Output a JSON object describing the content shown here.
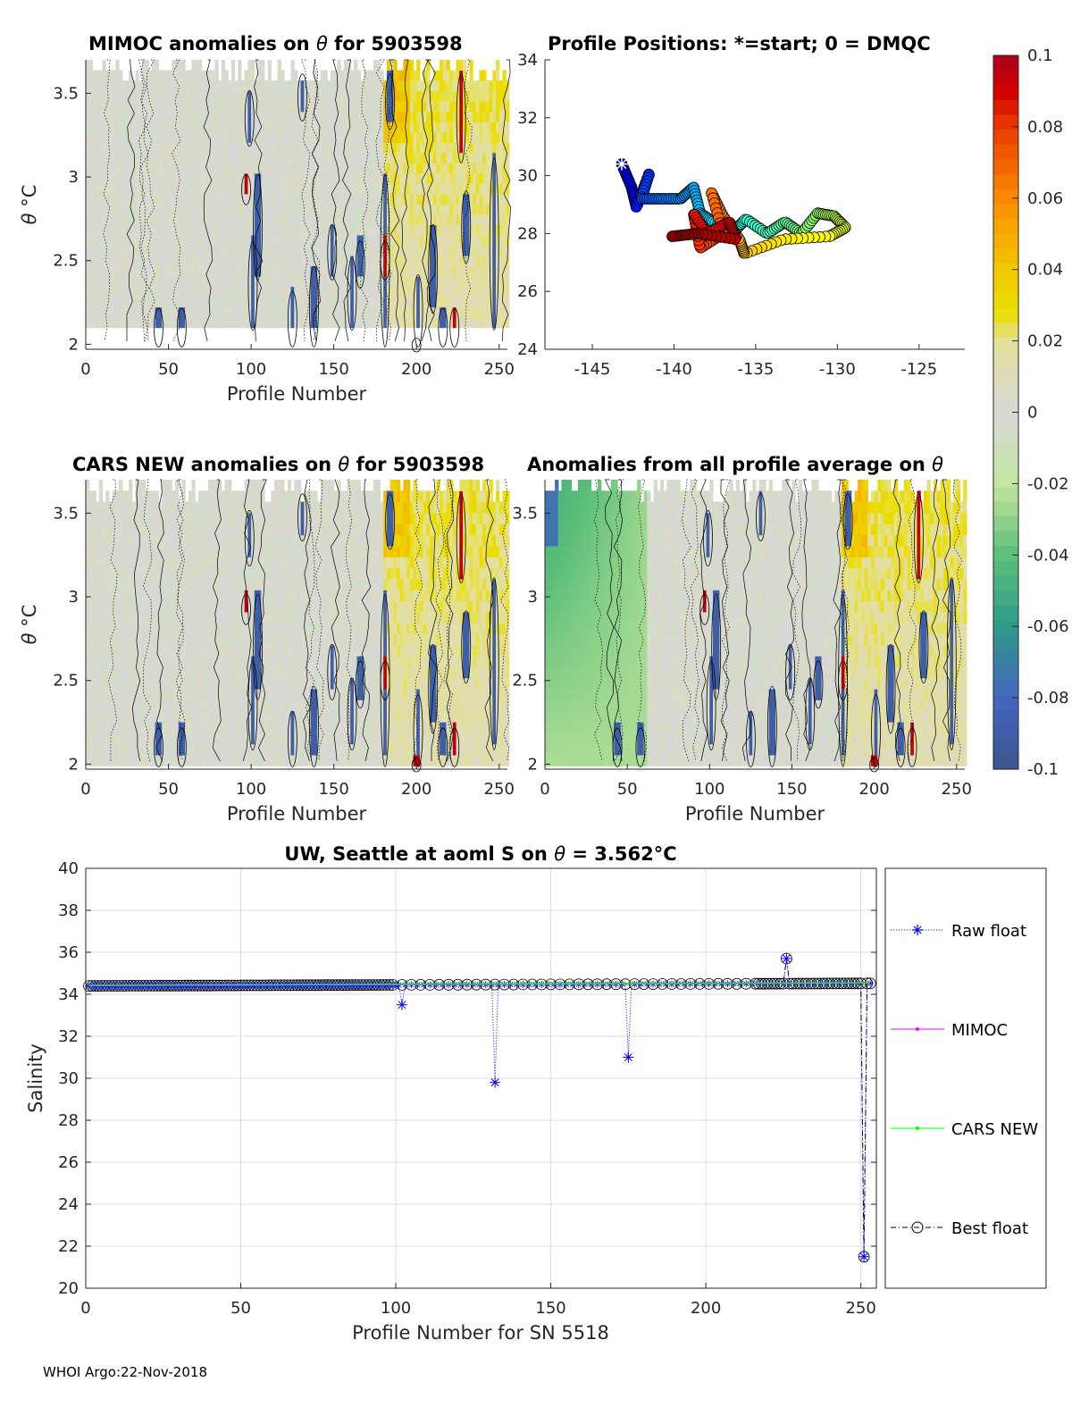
{
  "footer": "WHOI Argo:22-Nov-2018",
  "colors": {
    "raw": "#0000ff",
    "mimoc": "#ff00ff",
    "cars": "#00ff00",
    "best": "#000000"
  },
  "colorbar": {
    "ticks": [
      "0.1",
      "0.08",
      "0.06",
      "0.04",
      "0.02",
      "0",
      "-0.02",
      "-0.04",
      "-0.06",
      "-0.08",
      "-0.1"
    ],
    "range": [
      -0.1,
      0.1
    ]
  },
  "chart_data": [
    {
      "type": "heatmap",
      "title_pre": "MIMOC anomalies on ",
      "theta": "θ",
      "title_post": "  for 5903598",
      "xlabel": "Profile Number",
      "ylabel_sym": "θ",
      "ylabel_unit": " °C",
      "xticks": [
        "0",
        "50",
        "100",
        "150",
        "200",
        "250"
      ],
      "yticks": [
        "2",
        "2.5",
        "3",
        "3.5"
      ],
      "xlim": [
        0,
        255
      ],
      "ylim": [
        1.97,
        3.7
      ]
    },
    {
      "type": "scatter",
      "title": "Profile Positions: *=start; 0 = DMQC",
      "xticks": [
        "-145",
        "-140",
        "-135",
        "-130",
        "-125"
      ],
      "yticks": [
        "24",
        "26",
        "28",
        "30",
        "32",
        "34"
      ],
      "xlim": [
        -147.9,
        -122.2
      ],
      "ylim": [
        24,
        34
      ],
      "track_waypoints": [
        [
          -143.2,
          30.4
        ],
        [
          -142.6,
          29.6
        ],
        [
          -142.3,
          28.9
        ],
        [
          -141.5,
          30.1
        ],
        [
          -142.0,
          29.2
        ],
        [
          -140.8,
          29.2
        ],
        [
          -139.6,
          29.2
        ],
        [
          -138.8,
          29.6
        ],
        [
          -138.4,
          28.7
        ],
        [
          -137.6,
          28.4
        ],
        [
          -136.3,
          28.1
        ],
        [
          -135.6,
          28.5
        ],
        [
          -134.3,
          28.0
        ],
        [
          -133.2,
          28.4
        ],
        [
          -132.2,
          28.0
        ],
        [
          -131.2,
          28.7
        ],
        [
          -130.2,
          28.6
        ],
        [
          -129.5,
          28.2
        ],
        [
          -130.5,
          27.9
        ],
        [
          -133.3,
          27.8
        ],
        [
          -135.7,
          27.3
        ],
        [
          -136.0,
          27.8
        ],
        [
          -137.0,
          28.6
        ],
        [
          -137.7,
          29.4
        ],
        [
          -137.0,
          28.0
        ],
        [
          -138.4,
          27.5
        ],
        [
          -138.8,
          28.7
        ],
        [
          -138.0,
          28.0
        ],
        [
          -136.6,
          28.4
        ],
        [
          -136.2,
          27.8
        ],
        [
          -138.5,
          28.0
        ],
        [
          -140.1,
          27.9
        ]
      ]
    },
    {
      "type": "heatmap",
      "title_pre": "CARS NEW anomalies on ",
      "theta": "θ",
      "title_post": " for 5903598",
      "xlabel": "Profile Number",
      "ylabel_sym": "θ",
      "ylabel_unit": " °C",
      "xticks": [
        "0",
        "50",
        "100",
        "150",
        "200",
        "250"
      ],
      "yticks": [
        "2",
        "2.5",
        "3",
        "3.5"
      ],
      "xlim": [
        0,
        255
      ],
      "ylim": [
        1.97,
        3.7
      ]
    },
    {
      "type": "heatmap",
      "title_pre": "Anomalies from all profile average on ",
      "theta": "θ",
      "title_post": "",
      "xlabel": "Profile Number",
      "ylabel_sym": "θ",
      "ylabel_unit": " °C",
      "xticks": [
        "0",
        "50",
        "100",
        "150",
        "200",
        "250"
      ],
      "yticks": [
        "2",
        "2.5",
        "3",
        "3.5"
      ],
      "xlim": [
        0,
        255
      ],
      "ylim": [
        1.97,
        3.7
      ]
    },
    {
      "type": "line",
      "title_pre": "UW, Seattle at aoml S on ",
      "theta": "θ",
      "title_post": " = 3.562°C",
      "xlabel": "Profile Number for SN 5518",
      "ylabel": "Salinity",
      "xticks": [
        "0",
        "50",
        "100",
        "150",
        "200",
        "250"
      ],
      "yticks": [
        "20",
        "22",
        "24",
        "26",
        "28",
        "30",
        "32",
        "34",
        "36",
        "38",
        "40"
      ],
      "xlim": [
        0,
        255
      ],
      "ylim": [
        20,
        40
      ],
      "grid": true,
      "legend_placement": "outside-right",
      "baseline": {
        "start": 34.4,
        "end": 34.52,
        "n_profiles": 253
      },
      "raw_outliers": [
        [
          102,
          33.5
        ],
        [
          132,
          29.8
        ],
        [
          175,
          31.0
        ],
        [
          226,
          35.7
        ],
        [
          251,
          21.5
        ]
      ],
      "best_outliers": [
        [
          226,
          35.7
        ],
        [
          251,
          21.5
        ]
      ],
      "series": [
        {
          "name": "Raw float"
        },
        {
          "name": "MIMOC"
        },
        {
          "name": "CARS NEW"
        },
        {
          "name": "Best float"
        }
      ]
    }
  ]
}
